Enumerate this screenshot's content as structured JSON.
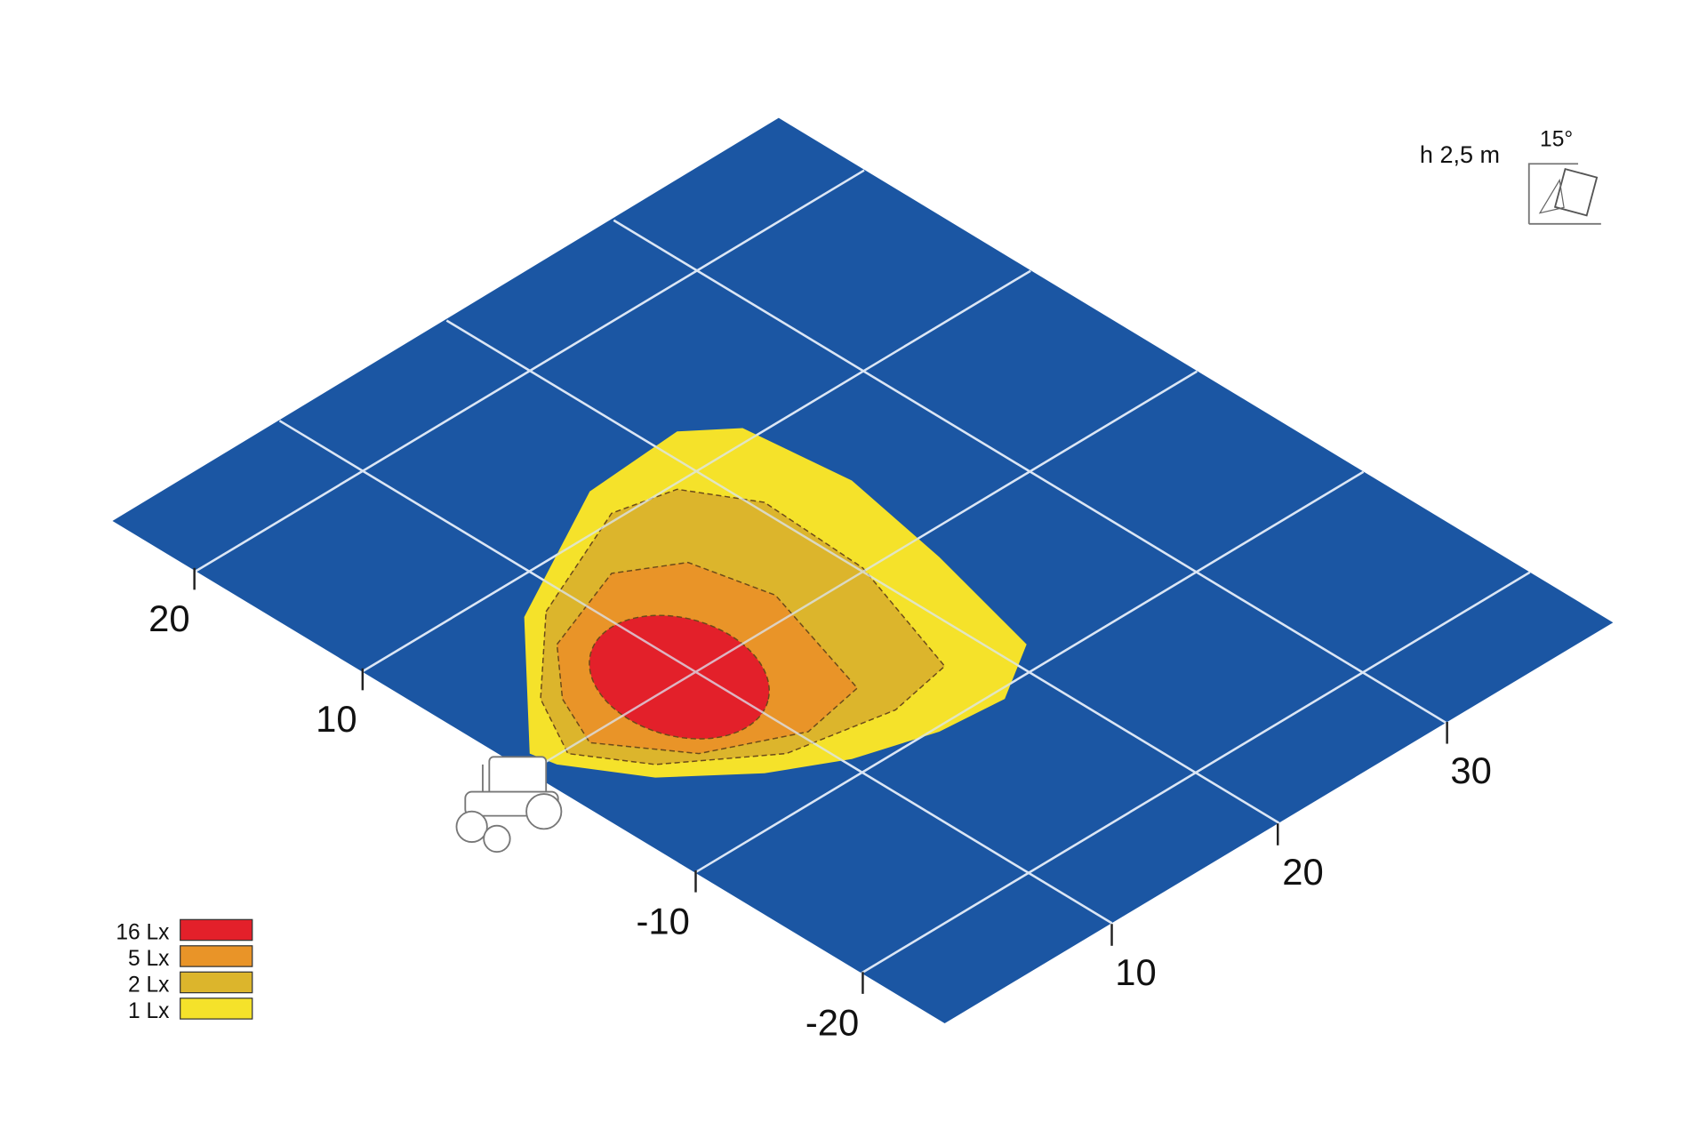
{
  "axis_left_labels": [
    "20",
    "10",
    "-10",
    "-20"
  ],
  "axis_right_labels": [
    "10",
    "20",
    "30"
  ],
  "legend": [
    "16 Lx",
    "5 Lx",
    "2 Lx",
    "1 Lx"
  ],
  "mounting": {
    "height": "h 2,5 m",
    "angle": "15°"
  }
}
